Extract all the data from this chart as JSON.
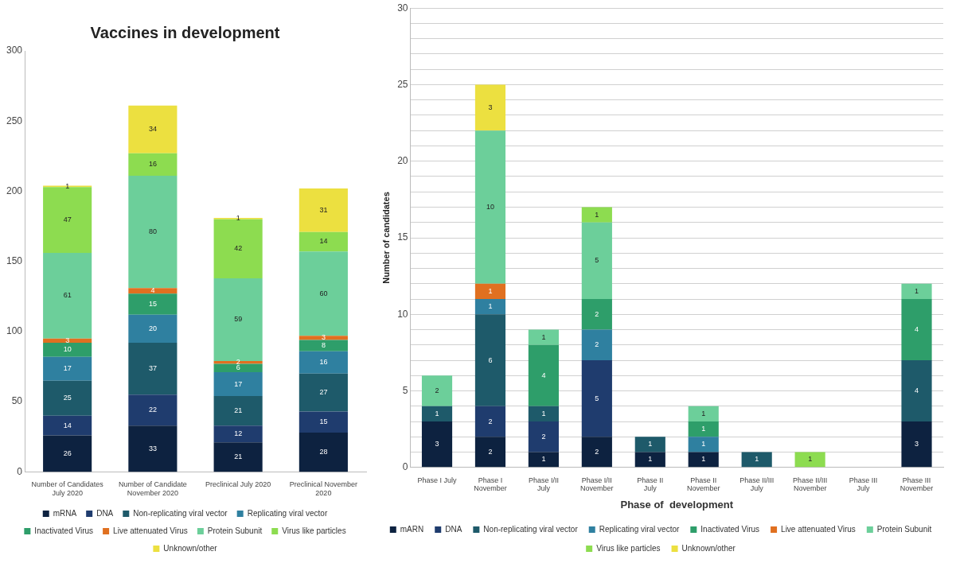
{
  "chart_data": [
    {
      "type": "bar",
      "title": "Vaccines in development",
      "stacked": true,
      "data_labels": true,
      "grid": false,
      "legend": "bottom",
      "categories": [
        "Number of Candidates July 2020",
        "Number of Candidate November 2020",
        "Preclinical July 2020",
        "Preclinical November 2020"
      ],
      "ylim": [
        0,
        300
      ],
      "yticks": [
        0,
        50,
        100,
        150,
        200,
        250,
        300
      ],
      "series": [
        {
          "name": "mRNA",
          "color": "#0d2240",
          "values": [
            26,
            33,
            21,
            28
          ]
        },
        {
          "name": "DNA",
          "color": "#1f3c6e",
          "values": [
            14,
            22,
            12,
            15
          ]
        },
        {
          "name": "Non-replicating viral vector",
          "color": "#1e5a6a",
          "values": [
            25,
            37,
            21,
            27
          ]
        },
        {
          "name": "Replicating viral vector",
          "color": "#2f80a0",
          "values": [
            17,
            20,
            17,
            16
          ]
        },
        {
          "name": "Inactivated Virus",
          "color": "#2e9e6a",
          "values": [
            10,
            15,
            6,
            8
          ]
        },
        {
          "name": "Live attenuated Virus",
          "color": "#e07020",
          "values": [
            3,
            4,
            2,
            3
          ]
        },
        {
          "name": "Protein Subunit",
          "color": "#6ccf9a",
          "values": [
            61,
            80,
            59,
            60
          ]
        },
        {
          "name": "Virus like particles",
          "color": "#8ddc50",
          "values": [
            47,
            16,
            42,
            14
          ]
        },
        {
          "name": "Unknown/other",
          "color": "#ece040",
          "values": [
            1,
            34,
            1,
            31
          ]
        }
      ]
    },
    {
      "type": "bar",
      "xlabel": "Phase of  development",
      "ylabel": "Number of candidates",
      "stacked": true,
      "data_labels": true,
      "grid": "y",
      "legend": "bottom",
      "categories": [
        "Phase I July",
        "Phase I November",
        "Phase I/II July",
        "Phase I/II November",
        "Phase II July",
        "Phase II November",
        "Phase II/III July",
        "Phase II/III November",
        "Phase III July",
        "Phase III November"
      ],
      "ylim": [
        0,
        30
      ],
      "yticks": [
        0,
        {
          "value": 1,
          "label": null
        },
        {
          "value": 2,
          "label": null
        },
        {
          "value": 3,
          "label": null
        },
        {
          "value": 4,
          "label": null
        },
        5,
        {
          "value": 6,
          "label": null
        },
        {
          "value": 7,
          "label": null
        },
        {
          "value": 8,
          "label": null
        },
        {
          "value": 9,
          "label": null
        },
        10,
        {
          "value": 11,
          "label": null
        },
        {
          "value": 12,
          "label": null
        },
        {
          "value": 13,
          "label": null
        },
        {
          "value": 14,
          "label": null
        },
        15,
        {
          "value": 16,
          "label": null
        },
        {
          "value": 17,
          "label": null
        },
        {
          "value": 18,
          "label": null
        },
        {
          "value": 19,
          "label": null
        },
        20,
        {
          "value": 21,
          "label": null
        },
        {
          "value": 22,
          "label": null
        },
        {
          "value": 23,
          "label": null
        },
        {
          "value": 24,
          "label": null
        },
        25,
        {
          "value": 26,
          "label": null
        },
        {
          "value": 27,
          "label": null
        },
        {
          "value": 28,
          "label": null
        },
        {
          "value": 29,
          "label": null
        },
        30
      ],
      "series": [
        {
          "name": "mARN",
          "color": "#0d2240",
          "values": [
            3,
            2,
            1,
            2,
            1,
            1,
            null,
            null,
            null,
            3
          ]
        },
        {
          "name": "DNA",
          "color": "#1f3c6e",
          "values": [
            null,
            2,
            2,
            5,
            null,
            null,
            null,
            null,
            null,
            null
          ]
        },
        {
          "name": "Non-replicating viral vector",
          "color": "#1e5a6a",
          "values": [
            1,
            6,
            1,
            null,
            1,
            null,
            1,
            null,
            null,
            4
          ]
        },
        {
          "name": "Replicating viral vector",
          "color": "#2f80a0",
          "values": [
            null,
            1,
            null,
            2,
            null,
            1,
            null,
            null,
            null,
            null
          ]
        },
        {
          "name": "Inactivated Virus",
          "color": "#2e9e6a",
          "values": [
            null,
            null,
            4,
            2,
            null,
            1,
            null,
            null,
            null,
            4
          ]
        },
        {
          "name": "Live attenuated Virus",
          "color": "#e07020",
          "values": [
            null,
            1,
            null,
            null,
            null,
            null,
            null,
            null,
            null,
            null
          ]
        },
        {
          "name": "Protein Subunit",
          "color": "#6ccf9a",
          "values": [
            2,
            10,
            1,
            5,
            null,
            1,
            null,
            null,
            null,
            1
          ]
        },
        {
          "name": "Virus like particles",
          "color": "#8ddc50",
          "values": [
            null,
            null,
            null,
            1,
            null,
            null,
            null,
            1,
            null,
            null
          ]
        },
        {
          "name": "Unknown/other",
          "color": "#ece040",
          "values": [
            null,
            3,
            null,
            null,
            null,
            null,
            null,
            null,
            null,
            null
          ]
        }
      ]
    }
  ]
}
